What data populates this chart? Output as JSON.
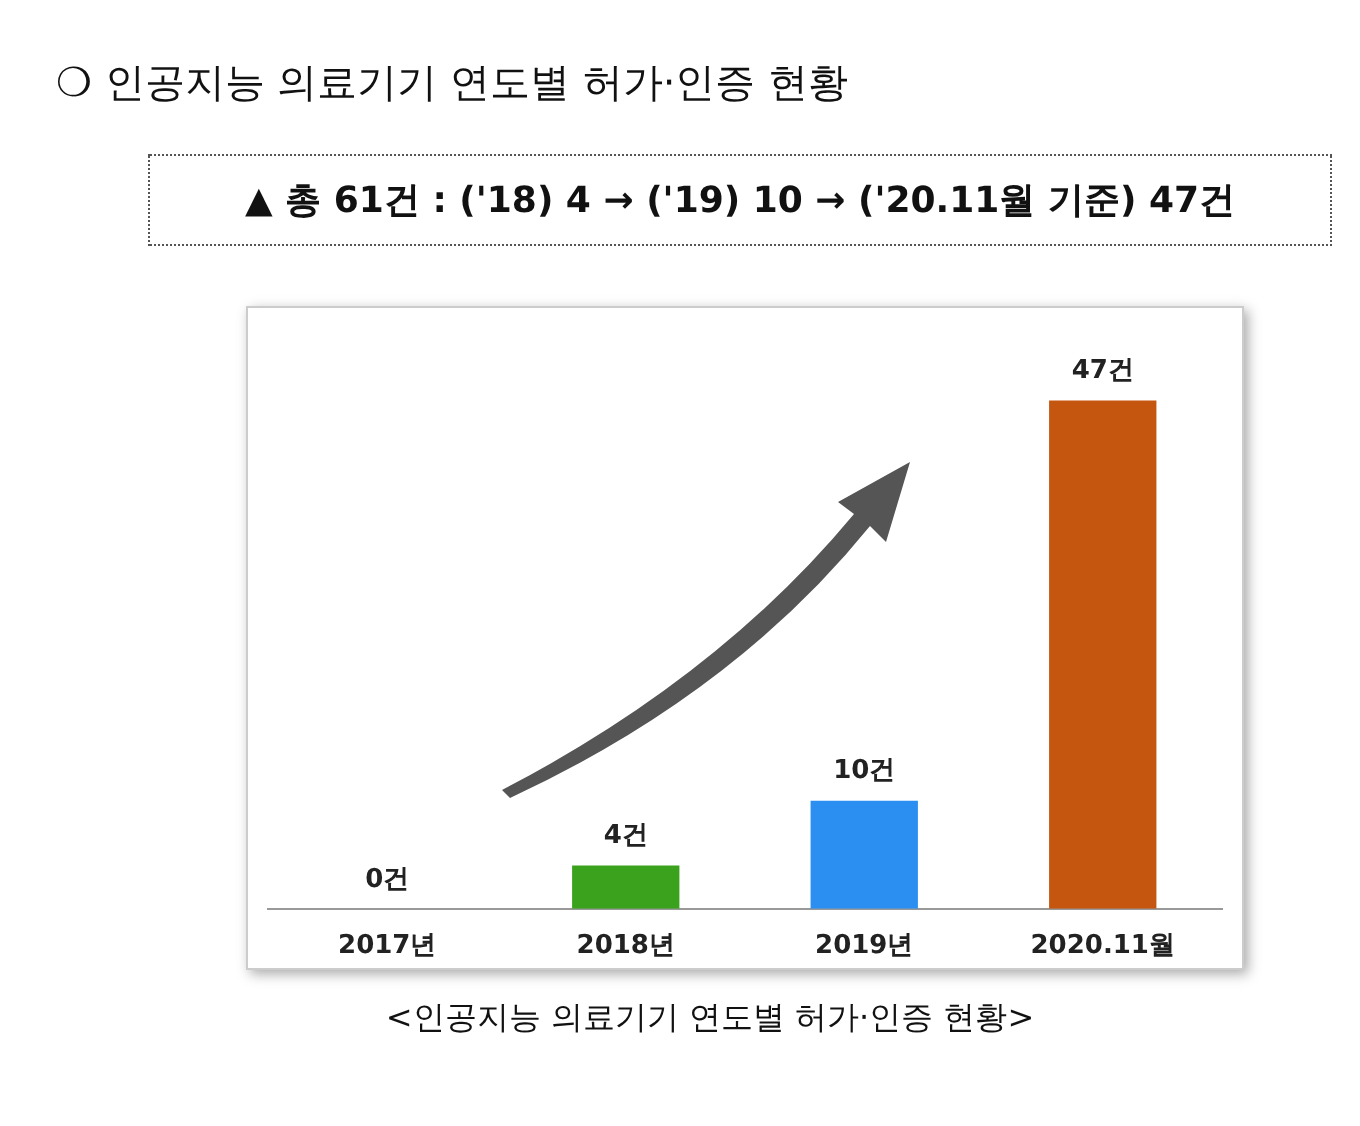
{
  "chart_data": {
    "type": "bar",
    "title": "❍ 인공지능 의료기기 연도별 허가·인증 현황",
    "subtitle": "▲ 총 61건 : ('18) 4 → ('19) 10 → ('20.11월 기준) 47건",
    "categories": [
      "2017년",
      "2018년",
      "2019년",
      "2020.11월"
    ],
    "values": [
      0,
      4,
      10,
      47
    ],
    "colors": [
      "#a6a6a6",
      "#3aa21c",
      "#2b8ff2",
      "#c5560f"
    ],
    "value_labels": [
      "0건",
      "4건",
      "10건",
      "47건"
    ],
    "annotations": [
      "<인공지능 의료기기 연도별 허가·인증 현황>"
    ],
    "grid": false,
    "legend": false
  }
}
